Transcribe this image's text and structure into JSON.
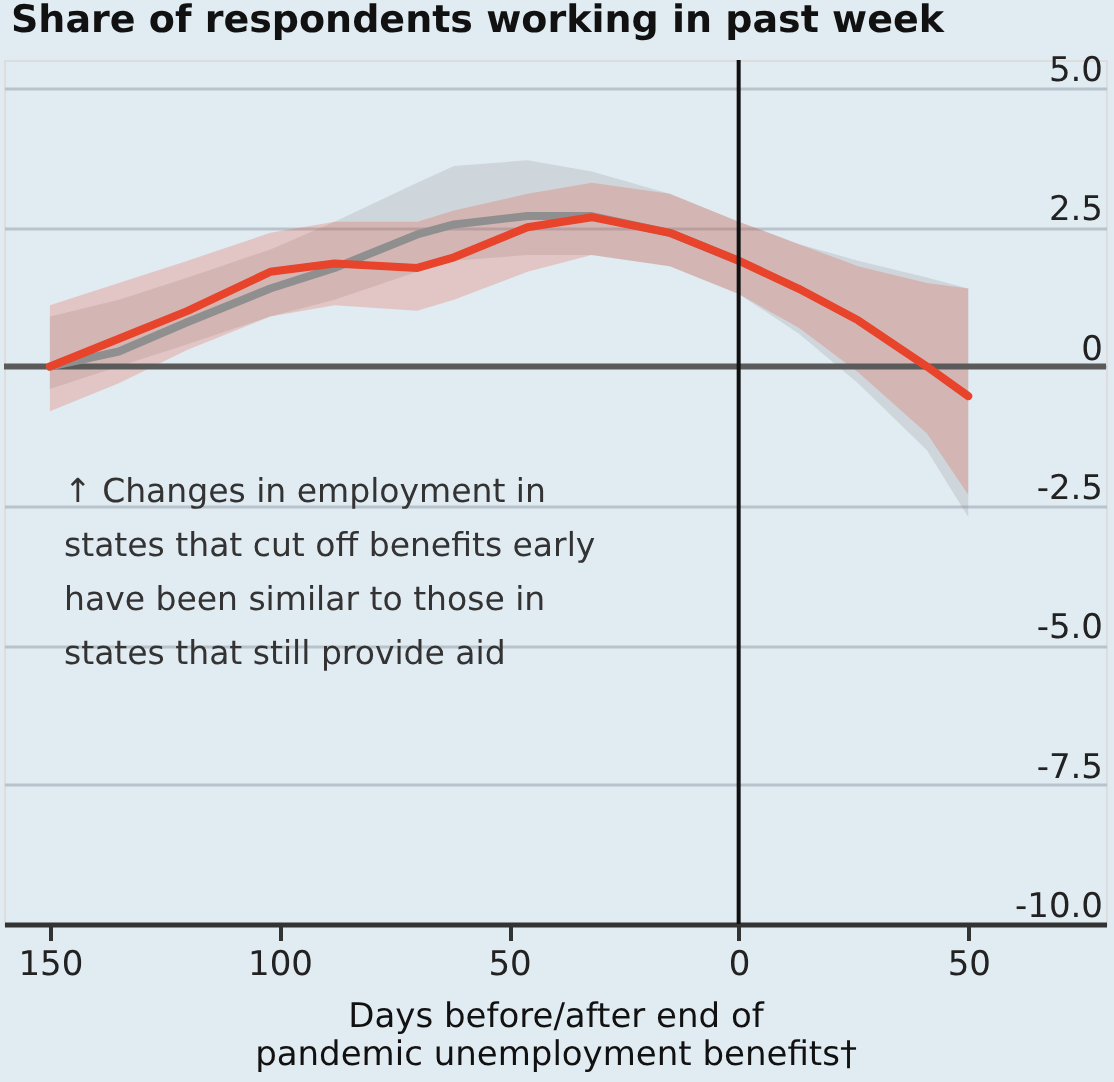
{
  "chart_data": {
    "type": "line",
    "title": "Share of respondents working in past week",
    "xlabel": "Days before/after end of\npandemic unemployment benefits†",
    "annotations": [
      "↑ Changes in employment in\nstates that cut off benefits early\nhave been similar to those in\nstates that still provide aid"
    ],
    "x": [
      -150,
      -135,
      -120,
      -102,
      -88,
      -70,
      -62,
      -46,
      -32,
      -15,
      0,
      13,
      26,
      41,
      50
    ],
    "series": [
      {
        "color": "#8f8f8f",
        "values": [
          0,
          0.27,
          0.8,
          1.4,
          1.77,
          2.37,
          2.55,
          2.7,
          2.7,
          2.4,
          1.9,
          null,
          null,
          null,
          null
        ],
        "lower": [
          -0.4,
          0,
          0.4,
          0.9,
          1.2,
          1.7,
          1.9,
          2.0,
          2.0,
          1.8,
          1.3,
          0.6,
          -0.3,
          -1.5,
          -2.7
        ],
        "upper": [
          0.9,
          1.2,
          1.6,
          2.1,
          2.6,
          3.3,
          3.6,
          3.7,
          3.5,
          3.1,
          2.6,
          2.2,
          1.9,
          1.6,
          1.4
        ]
      },
      {
        "color": "#e8432b",
        "values": [
          0,
          0.5,
          1.0,
          1.7,
          1.85,
          1.77,
          1.96,
          2.5,
          2.68,
          2.4,
          1.9,
          1.4,
          0.83,
          0,
          -0.53
        ],
        "lower": [
          -0.8,
          -0.3,
          0.3,
          0.9,
          1.1,
          1.0,
          1.2,
          1.7,
          2.0,
          1.8,
          1.3,
          0.7,
          -0.1,
          -1.2,
          -2.3
        ],
        "upper": [
          1.1,
          1.5,
          1.9,
          2.4,
          2.6,
          2.6,
          2.8,
          3.1,
          3.3,
          3.1,
          2.6,
          2.2,
          1.8,
          1.5,
          1.4
        ]
      }
    ],
    "xlim": [
      -160,
      80
    ],
    "xticks": [
      {
        "value": -150,
        "label": "150"
      },
      {
        "value": -100,
        "label": "100"
      },
      {
        "value": -50,
        "label": "50"
      },
      0,
      50
    ],
    "ylim": [
      -10,
      5.5
    ],
    "yticks": [
      {
        "value": -10,
        "label": "-10.0"
      },
      {
        "value": -7.5,
        "label": "-7.5"
      },
      {
        "value": -5,
        "label": "-5.0"
      },
      {
        "value": -2.5,
        "label": "-2.5"
      },
      0,
      {
        "value": 2.5,
        "label": "2.5"
      },
      {
        "value": 5,
        "label": "5.0"
      }
    ],
    "ref_lines": [
      {
        "axis": "y",
        "value": 0,
        "color": "#5a5a5a"
      },
      {
        "axis": "x",
        "value": 0,
        "color": "#111111"
      }
    ],
    "grid": "y",
    "line_style": "solid",
    "marker": "none"
  }
}
